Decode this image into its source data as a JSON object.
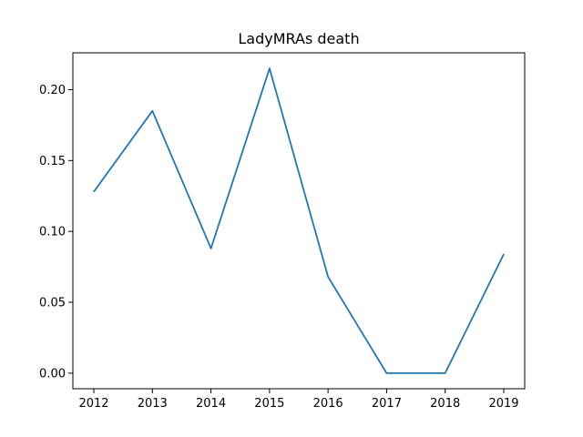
{
  "chart_data": {
    "type": "line",
    "title": "LadyMRAs death",
    "xlabel": "",
    "ylabel": "",
    "x": [
      "2012",
      "2013",
      "2014",
      "2015",
      "2016",
      "2017",
      "2018",
      "2019"
    ],
    "series": [
      {
        "values": [
          0.128,
          0.185,
          0.088,
          0.215,
          0.068,
          0.0,
          0.0,
          0.084
        ],
        "color": "#1f77b4"
      }
    ],
    "yticks": [
      "0.00",
      "0.05",
      "0.10",
      "0.15",
      "0.20"
    ],
    "ylim": [
      -0.011,
      0.226
    ],
    "grid": false,
    "legend": "none"
  }
}
